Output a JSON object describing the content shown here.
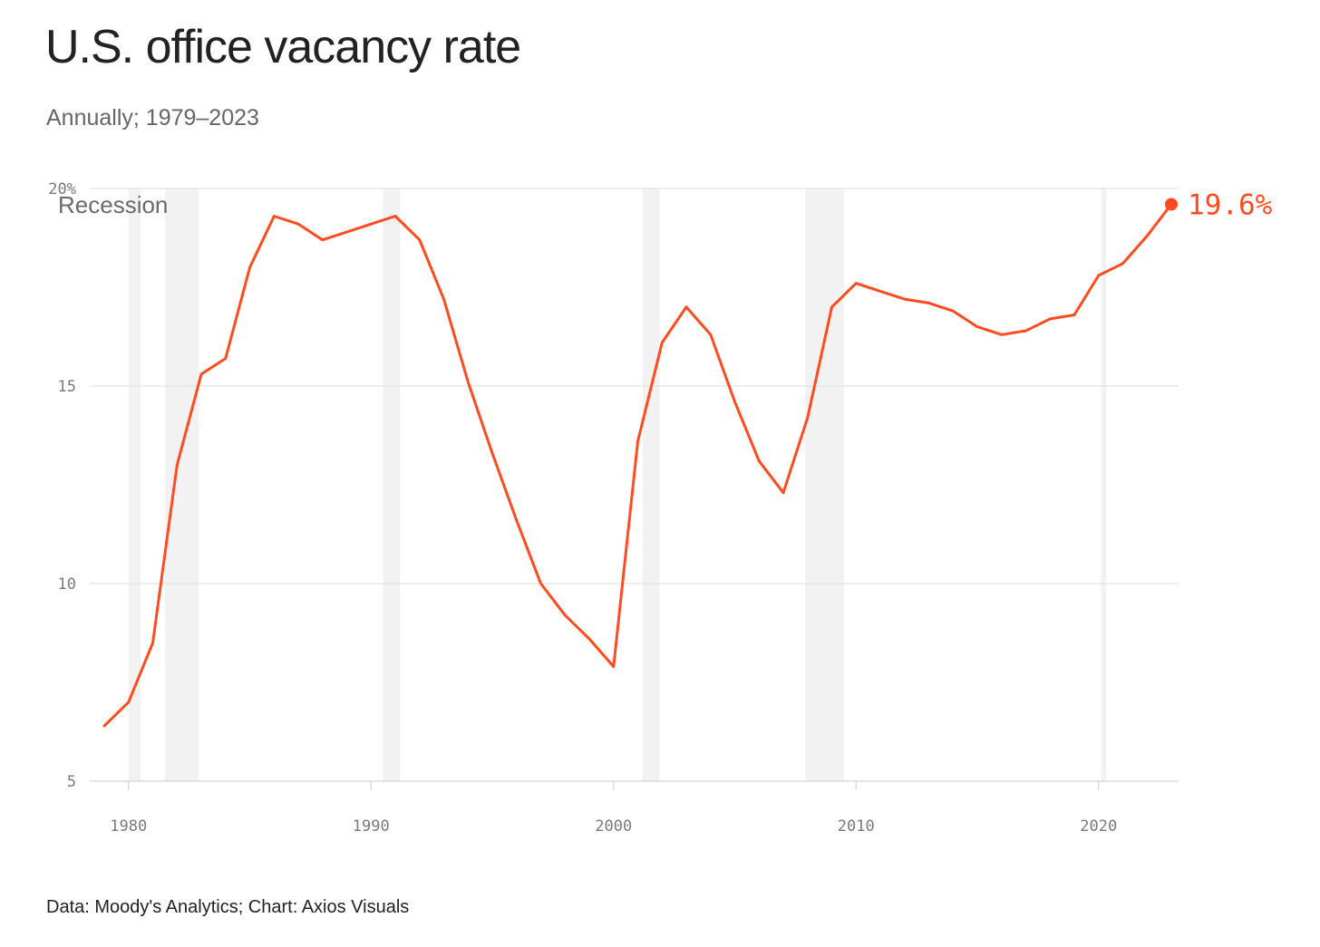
{
  "title": "U.S. office vacancy rate",
  "subtitle": "Annually; 1979–2023",
  "source": "Data: Moody's Analytics; Chart: Axios Visuals",
  "colors": {
    "line": "#ff4b1f",
    "recession": "#f2f2f2",
    "grid": "#dddddd",
    "axis": "#cccccc"
  },
  "chart_data": {
    "type": "line",
    "title": "U.S. office vacancy rate",
    "subtitle": "Annually; 1979–2023",
    "xlabel": "",
    "ylabel": "",
    "x": [
      1979,
      1980,
      1981,
      1982,
      1983,
      1984,
      1985,
      1986,
      1987,
      1988,
      1989,
      1990,
      1991,
      1992,
      1993,
      1994,
      1995,
      1996,
      1997,
      1998,
      1999,
      2000,
      2001,
      2002,
      2003,
      2004,
      2005,
      2006,
      2007,
      2008,
      2009,
      2010,
      2011,
      2012,
      2013,
      2014,
      2015,
      2016,
      2017,
      2018,
      2019,
      2020,
      2021,
      2022,
      2023
    ],
    "series": [
      {
        "name": "Office vacancy rate",
        "values": [
          6.4,
          7.0,
          8.5,
          13.0,
          15.3,
          15.7,
          18.0,
          19.3,
          19.1,
          18.7,
          18.9,
          19.1,
          19.3,
          18.7,
          17.2,
          15.1,
          13.3,
          11.6,
          10.0,
          9.2,
          8.6,
          7.9,
          13.6,
          16.1,
          17.0,
          16.3,
          14.6,
          13.1,
          12.3,
          14.2,
          17.0,
          17.6,
          17.4,
          17.2,
          17.1,
          16.9,
          16.5,
          16.3,
          16.4,
          16.7,
          16.8,
          17.8,
          18.1,
          18.8,
          19.6
        ]
      }
    ],
    "recessions": [
      [
        1980.0,
        1980.5
      ],
      [
        1981.5,
        1982.9
      ],
      [
        1990.5,
        1991.2
      ],
      [
        2001.2,
        2001.9
      ],
      [
        2007.9,
        2009.5
      ],
      [
        2020.1,
        2020.3
      ]
    ],
    "recession_label": "Recession",
    "end_label": "19.6%",
    "xlim": [
      1979,
      2023
    ],
    "ylim": [
      5,
      20
    ],
    "yticks": [
      5,
      10,
      15,
      20
    ],
    "ytick_labels": [
      "5",
      "10",
      "15",
      "20%"
    ],
    "xticks": [
      1980,
      1990,
      2000,
      2010,
      2020
    ],
    "xtick_labels": [
      "1980",
      "1990",
      "2000",
      "2010",
      "2020"
    ],
    "grid": true
  }
}
